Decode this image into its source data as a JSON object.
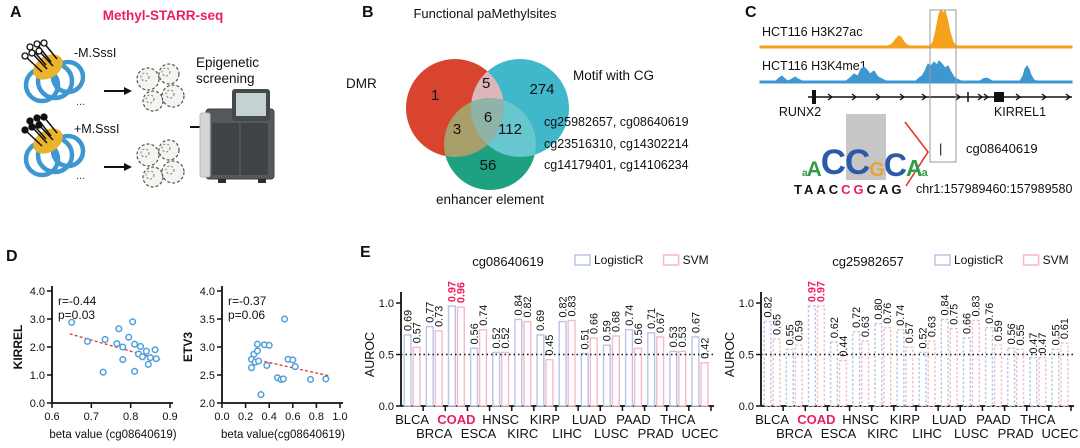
{
  "panelA": {
    "label": "A",
    "title": "Methyl-STARR-seq",
    "minus_label": "-M.SssI",
    "plus_label": "+M.SssI",
    "screening_line1": "Epigenetic",
    "screening_line2": "screening",
    "dots": "..."
  },
  "panelB": {
    "label": "B",
    "title": "Functional paMethylsites",
    "set_dmr": "DMR",
    "set_motif": "Motif with CG",
    "set_enhancer": "enhancer element",
    "counts": {
      "dmr_only": "1",
      "dmr_motif": "5",
      "motif_only": "274",
      "all_three": "6",
      "dmr_enhancer": "3",
      "motif_enhancer": "112",
      "enhancer_only": "56"
    },
    "cg_list": [
      "cg25982657, cg08640619",
      "cg23516310, cg14302214",
      "cg14179401, cg14106234"
    ]
  },
  "panelC": {
    "label": "C",
    "track1": "HCT116 H3K27ac",
    "track2": "HCT116 H3K4me1",
    "gene_left": "RUNX2",
    "gene_right": "KIRREL1",
    "site": "cg08640619",
    "site_tick": "|",
    "coords": "chr1:157989460:157989580",
    "seq_prefix": "TAAC",
    "seq_cg": "CG",
    "seq_suffix": "CAG",
    "logo": [
      {
        "ch": "a",
        "color": "#2E9E4B",
        "size": 10
      },
      {
        "ch": "A",
        "color": "#2E9E4B",
        "size": 21
      },
      {
        "ch": "C",
        "color": "#2B5BA8",
        "size": 35
      },
      {
        "ch": "C",
        "color": "#2B5BA8",
        "size": 35
      },
      {
        "ch": "G",
        "color": "#E8A33D",
        "size": 20
      },
      {
        "ch": "C",
        "color": "#2B5BA8",
        "size": 32
      },
      {
        "ch": "A",
        "color": "#2E9E4B",
        "size": 23
      },
      {
        "ch": "a",
        "color": "#2E9E4B",
        "size": 11
      }
    ]
  },
  "panelD": {
    "label": "D"
  },
  "panelE": {
    "label": "E"
  },
  "colors": {
    "accent_pink": "#EC1E5C",
    "venn_dmr": "#D8442E",
    "venn_motif": "#41B7CC",
    "venn_enhancer": "#1EA180",
    "venn_dmr_motif": "#DDB6B8",
    "venn_dmr_enh": "#A89E69",
    "venn_motif_enh": "#67C6CE",
    "venn_center": "#8FB3A9",
    "track_orange": "#F5A11C",
    "track_blue": "#3E97D1",
    "scatter_point": "#4D9FDB",
    "trend_red": "#E8342A",
    "bar_logistic": "#B9C4E8",
    "bar_svm": "#F5B9C9"
  },
  "chart_data": [
    {
      "type": "scatter",
      "ylabel": "KIRREL",
      "xlabel": "beta value (cg08640619)",
      "r_label": "r=-0.44",
      "p_label": "p=0.03",
      "xlim": [
        0.6,
        0.9
      ],
      "ylim": [
        0,
        4
      ],
      "xticks": [
        0.6,
        0.7,
        0.8,
        0.9
      ],
      "xtick_labels": [
        "0.6",
        "0.7",
        "0.8",
        "0.9"
      ],
      "yticks": [
        0,
        1,
        2,
        3,
        4
      ],
      "ytick_labels": [
        "0.0",
        "1.0",
        "2.0",
        "3.0",
        "4.0"
      ],
      "points": [
        [
          0.65,
          2.88
        ],
        [
          0.69,
          2.2
        ],
        [
          0.73,
          1.1
        ],
        [
          0.735,
          2.27
        ],
        [
          0.765,
          2.12
        ],
        [
          0.77,
          2.65
        ],
        [
          0.78,
          2.0
        ],
        [
          0.78,
          1.55
        ],
        [
          0.795,
          2.35
        ],
        [
          0.805,
          2.9
        ],
        [
          0.81,
          2.1
        ],
        [
          0.81,
          1.13
        ],
        [
          0.82,
          1.75
        ],
        [
          0.825,
          2.02
        ],
        [
          0.83,
          1.65
        ],
        [
          0.84,
          1.85
        ],
        [
          0.845,
          1.38
        ],
        [
          0.85,
          1.62
        ],
        [
          0.862,
          1.9
        ],
        [
          0.865,
          1.58
        ]
      ],
      "trend": {
        "x1": 0.645,
        "y1": 2.47,
        "x2": 0.875,
        "y2": 1.55
      },
      "point_color": "#4D9FDB",
      "trend_color": "#E8342A"
    },
    {
      "type": "scatter",
      "ylabel": "ETV3",
      "xlabel": "beta value(cg08640619)",
      "r_label": "r=-0.37",
      "p_label": "p=0.06",
      "xlim": [
        0,
        1
      ],
      "ylim": [
        2,
        4
      ],
      "xticks": [
        0,
        0.2,
        0.4,
        0.6,
        0.8,
        1.0
      ],
      "xtick_labels": [
        "0.0",
        "0.2",
        "0.4",
        "0.6",
        "0.8",
        "1.0"
      ],
      "yticks": [
        2,
        2.5,
        3,
        3.5,
        4
      ],
      "ytick_labels": [
        "2.0",
        "2.5",
        "3.0",
        "3.5",
        "4.0"
      ],
      "points": [
        [
          0.25,
          2.78
        ],
        [
          0.25,
          2.63
        ],
        [
          0.27,
          2.87
        ],
        [
          0.28,
          2.73
        ],
        [
          0.3,
          3.05
        ],
        [
          0.3,
          2.93
        ],
        [
          0.31,
          2.75
        ],
        [
          0.33,
          2.15
        ],
        [
          0.36,
          3.04
        ],
        [
          0.38,
          2.67
        ],
        [
          0.4,
          3.03
        ],
        [
          0.47,
          2.45
        ],
        [
          0.5,
          2.42
        ],
        [
          0.52,
          2.43
        ],
        [
          0.53,
          3.5
        ],
        [
          0.56,
          2.78
        ],
        [
          0.6,
          2.77
        ],
        [
          0.62,
          2.65
        ],
        [
          0.75,
          2.42
        ],
        [
          0.88,
          2.43
        ]
      ],
      "trend": {
        "x1": 0.23,
        "y1": 2.8,
        "x2": 0.9,
        "y2": 2.49
      },
      "point_color": "#4D9FDB",
      "trend_color": "#E8342A"
    },
    {
      "type": "bar",
      "title": "cg08640619",
      "ylabel": "AUROC",
      "legend": [
        {
          "label": "LogisticR",
          "color": "#B9C4E8"
        },
        {
          "label": "SVM",
          "color": "#F5B9C9"
        }
      ],
      "categories": [
        "BLCA",
        "BRCA",
        "COAD",
        "ESCA",
        "HNSC",
        "KIRC",
        "KIRP",
        "LIHC",
        "LUAD",
        "LUSC",
        "PAAD",
        "PRAD",
        "THCA",
        "UCEC"
      ],
      "highlight": "COAD",
      "highlight_color": "#EC1E5C",
      "hline": 0.5,
      "yticks": [
        0,
        0.5,
        1
      ],
      "ytick_labels": [
        "0.0",
        "0.5",
        "1.0"
      ],
      "bar_style": "solid",
      "series": [
        {
          "name": "LogisticR",
          "color": "#B9C4E8",
          "values": [
            0.69,
            0.77,
            0.97,
            0.56,
            0.52,
            0.84,
            0.69,
            0.82,
            0.51,
            0.59,
            0.74,
            0.71,
            0.53,
            0.67
          ]
        },
        {
          "name": "SVM",
          "color": "#F5B9C9",
          "values": [
            0.57,
            0.73,
            0.96,
            0.74,
            0.52,
            0.82,
            0.45,
            0.83,
            0.66,
            0.68,
            0.56,
            0.67,
            0.53,
            0.42
          ]
        }
      ]
    },
    {
      "type": "bar",
      "title": "cg25982657",
      "ylabel": "AUROC",
      "legend": [
        {
          "label": "LogisticR",
          "color": "#B9C4E8"
        },
        {
          "label": "SVM",
          "color": "#F5B9C9"
        }
      ],
      "categories": [
        "BLCA",
        "BRCA",
        "COAD",
        "ESCA",
        "HNSC",
        "KIRC",
        "KIRP",
        "LIHC",
        "LUAD",
        "LUSC",
        "PAAD",
        "PRAD",
        "THCA",
        "UCEC"
      ],
      "highlight": "COAD",
      "highlight_color": "#EC1E5C",
      "hline": 0.5,
      "yticks": [
        0,
        0.5,
        1
      ],
      "ytick_labels": [
        "0.0",
        "0.5",
        "1.0"
      ],
      "bar_style": "dashed",
      "series": [
        {
          "name": "LogisticR",
          "color": "#B9C4E8",
          "values": [
            0.82,
            0.55,
            0.97,
            0.62,
            0.72,
            0.8,
            0.74,
            0.52,
            0.84,
            0.66,
            0.76,
            0.56,
            0.47,
            0.55
          ]
        },
        {
          "name": "SVM",
          "color": "#F5B9C9",
          "values": [
            0.65,
            0.59,
            0.97,
            0.44,
            0.63,
            0.76,
            0.57,
            0.63,
            0.75,
            0.83,
            0.59,
            0.55,
            0.47,
            0.61
          ]
        }
      ]
    }
  ]
}
